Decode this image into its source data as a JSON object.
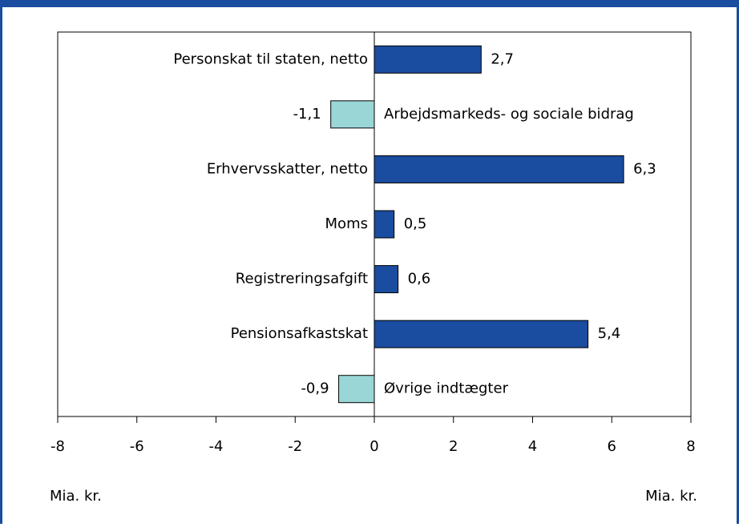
{
  "chart_data": {
    "type": "hbar",
    "categories": [
      "Personskat til staten, netto",
      "Arbejdsmarkeds- og sociale bidrag",
      "Erhvervsskatter, netto",
      "Moms",
      "Registreringsafgift",
      "Pensionsafkastskat",
      "Øvrige indtægter"
    ],
    "values": [
      2.7,
      -1.1,
      6.3,
      0.5,
      0.6,
      5.4,
      -0.9
    ],
    "value_labels": [
      "2,7",
      "-1,1",
      "6,3",
      "0,5",
      "0,6",
      "5,4",
      "-0,9"
    ],
    "colors": [
      "#1a4c9f",
      "#9ad6d6",
      "#1a4c9f",
      "#1a4c9f",
      "#1a4c9f",
      "#1a4c9f",
      "#9ad6d6"
    ],
    "xlim": [
      -8,
      8
    ],
    "xticks": [
      -8,
      -6,
      -4,
      -2,
      0,
      2,
      4,
      6,
      8
    ],
    "axis_labels": [
      "Mia. kr.",
      "Mia. kr."
    ]
  }
}
